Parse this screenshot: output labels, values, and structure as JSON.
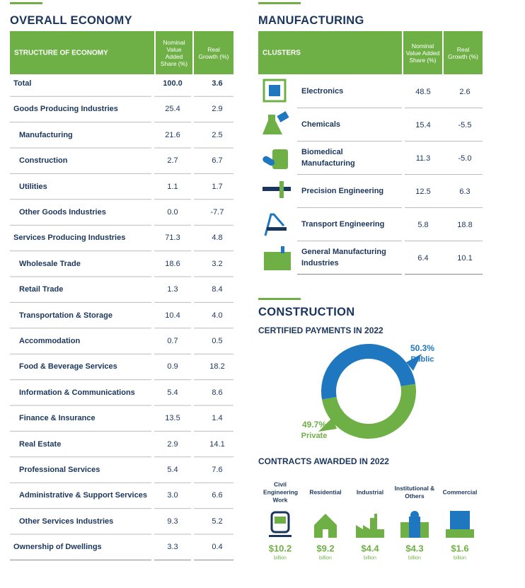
{
  "overall": {
    "title": "OVERALL ECONOMY",
    "headers": [
      "STRUCTURE OF ECONOMY",
      "Nominal Value Added Share (%)",
      "Real Growth (%)"
    ],
    "rows": [
      {
        "name": "Total",
        "share": "100.0",
        "growth": "3.6"
      },
      {
        "name": "Goods Producing Industries",
        "share": "25.4",
        "growth": "2.9",
        "children": [
          {
            "name": "Manufacturing",
            "share": "21.6",
            "growth": "2.5"
          },
          {
            "name": "Construction",
            "share": "2.7",
            "growth": "6.7"
          },
          {
            "name": "Utilities",
            "share": "1.1",
            "growth": "1.7"
          },
          {
            "name": "Other Goods Industries",
            "share": "0.0",
            "growth": "-7.7"
          }
        ]
      },
      {
        "name": "Services Producing Industries",
        "share": "71.3",
        "growth": "4.8",
        "children": [
          {
            "name": "Wholesale Trade",
            "share": "18.6",
            "growth": "3.2"
          },
          {
            "name": "Retail Trade",
            "share": "1.3",
            "growth": "8.4"
          },
          {
            "name": "Transportation & Storage",
            "share": "10.4",
            "growth": "4.0"
          },
          {
            "name": "Accommodation",
            "share": "0.7",
            "growth": "0.5"
          },
          {
            "name": "Food & Beverage Services",
            "share": "0.9",
            "growth": "18.2"
          },
          {
            "name": "Information & Communications",
            "share": "5.4",
            "growth": "8.6"
          },
          {
            "name": "Finance & Insurance",
            "share": "13.5",
            "growth": "1.4"
          },
          {
            "name": "Real Estate",
            "share": "2.9",
            "growth": "14.1"
          },
          {
            "name": "Professional Services",
            "share": "5.4",
            "growth": "7.6"
          },
          {
            "name": "Administrative & Support Services",
            "share": "3.0",
            "growth": "6.6"
          },
          {
            "name": "Other Services Industries",
            "share": "9.3",
            "growth": "5.2"
          }
        ]
      },
      {
        "name": "Ownership of Dwellings",
        "share": "3.3",
        "growth": "0.4"
      }
    ]
  },
  "manufacturing": {
    "title": "MANUFACTURING",
    "headers": [
      "CLUSTERS",
      "Nominal Value Added Share (%)",
      "Real Growth (%)"
    ],
    "rows": [
      {
        "name": "Electronics",
        "share": "48.5",
        "growth": "2.6"
      },
      {
        "name": "Chemicals",
        "share": "15.4",
        "growth": "-5.5"
      },
      {
        "name": "Biomedical Manufacturing",
        "share": "11.3",
        "growth": "-5.0"
      },
      {
        "name": "Precision Engineering",
        "share": "12.5",
        "growth": "6.3"
      },
      {
        "name": "Transport Engineering",
        "share": "5.8",
        "growth": "18.8"
      },
      {
        "name": "General Manufacturing Industries",
        "share": "6.4",
        "growth": "10.1"
      }
    ]
  },
  "construction": {
    "title": "CONSTRUCTION",
    "certified_payments": {
      "type": "pie",
      "title": "CERTIFIED PAYMENTS IN 2022",
      "categories": [
        "Public",
        "Private"
      ],
      "values": [
        50.3,
        49.7
      ],
      "value_labels": [
        "50.3%",
        "49.7%"
      ],
      "colors": [
        "#1f77bf",
        "#6fb046"
      ]
    },
    "contracts": {
      "title": "CONTRACTS AWARDED IN 2022",
      "items": [
        {
          "label": "Civil Engineering Work",
          "amount": "$10.2",
          "unit": "billion"
        },
        {
          "label": "Residential",
          "amount": "$9.2",
          "unit": "billion"
        },
        {
          "label": "Industrial",
          "amount": "$4.4",
          "unit": "billion"
        },
        {
          "label": "Institutional & Others",
          "amount": "$4.3",
          "unit": "billion"
        },
        {
          "label": "Commercial",
          "amount": "$1.6",
          "unit": "billion"
        }
      ]
    }
  }
}
